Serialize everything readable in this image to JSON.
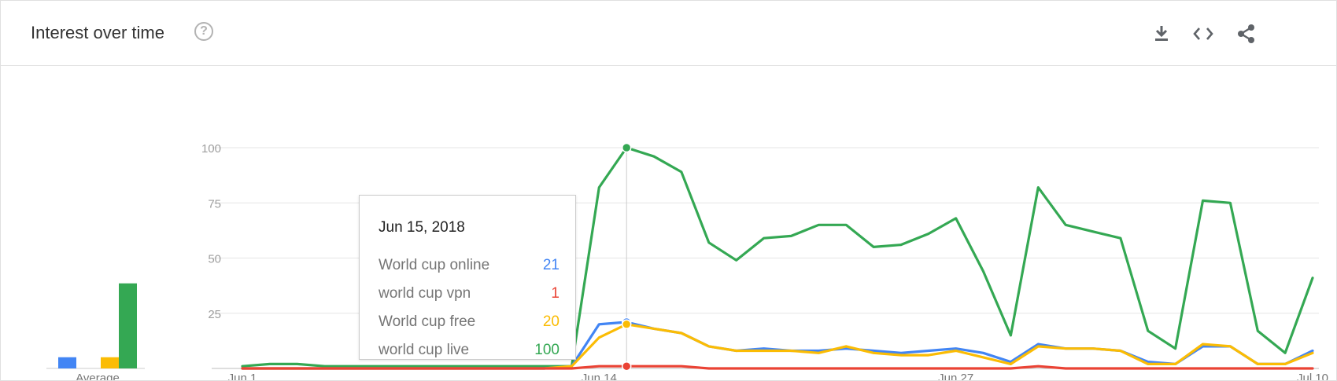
{
  "header": {
    "title": "Interest over time",
    "help_icon": "help-circle-icon",
    "actions": [
      {
        "name": "download-icon"
      },
      {
        "name": "embed-code-icon"
      },
      {
        "name": "share-icon"
      }
    ]
  },
  "tooltip": {
    "date": "Jun 15, 2018",
    "rows": [
      {
        "label": "World cup online",
        "value": "21",
        "color": "#4285f4"
      },
      {
        "label": "world cup vpn",
        "value": "1",
        "color": "#ea4335"
      },
      {
        "label": "World cup free",
        "value": "20",
        "color": "#fbbc04"
      },
      {
        "label": "world cup live",
        "value": "100",
        "color": "#34a853"
      }
    ]
  },
  "chart_data": [
    {
      "type": "bar",
      "xlabel": "Average",
      "series": [
        {
          "values": [
            5
          ],
          "color": "#4285f4"
        },
        {
          "values": [
            0
          ],
          "color": "#ea4335"
        },
        {
          "values": [
            5
          ],
          "color": "#fbbc04"
        },
        {
          "values": [
            38
          ],
          "color": "#34a853"
        }
      ]
    },
    {
      "type": "line",
      "ylim": [
        0,
        100
      ],
      "yticks": [
        25,
        50,
        75,
        100
      ],
      "grid": true,
      "xtick_labels": [
        "Jun 1",
        "Jun 14",
        "Jun 27",
        "Jul 10"
      ],
      "xtick_days": [
        1,
        14,
        27,
        40
      ],
      "x_start": 1,
      "highlight_day": 15,
      "series": [
        {
          "key": "live",
          "color": "#34a853",
          "values": [
            1,
            2,
            2,
            1,
            1,
            1,
            1,
            1,
            1,
            1,
            1,
            1,
            1,
            82,
            100,
            96,
            89,
            57,
            49,
            59,
            60,
            65,
            65,
            55,
            56,
            61,
            68,
            44,
            15,
            82,
            65,
            62,
            59,
            17,
            9,
            76,
            75,
            17,
            7,
            41
          ]
        },
        {
          "key": "online",
          "color": "#4285f4",
          "values": [
            0,
            0,
            0,
            0,
            0,
            0,
            0,
            0,
            0,
            0,
            0,
            0,
            1,
            20,
            21,
            18,
            16,
            10,
            8,
            9,
            8,
            8,
            9,
            8,
            7,
            8,
            9,
            7,
            3,
            11,
            9,
            9,
            8,
            3,
            2,
            10,
            10,
            2,
            2,
            8
          ]
        },
        {
          "key": "free",
          "color": "#fbbc04",
          "values": [
            0,
            0,
            0,
            0,
            0,
            0,
            0,
            0,
            0,
            0,
            0,
            0,
            1,
            14,
            20,
            18,
            16,
            10,
            8,
            8,
            8,
            7,
            10,
            7,
            6,
            6,
            8,
            5,
            2,
            10,
            9,
            9,
            8,
            2,
            2,
            11,
            10,
            2,
            2,
            7
          ]
        },
        {
          "key": "vpn",
          "color": "#ea4335",
          "values": [
            0,
            0,
            0,
            0,
            0,
            0,
            0,
            0,
            0,
            0,
            0,
            0,
            0,
            1,
            1,
            1,
            1,
            0,
            0,
            0,
            0,
            0,
            0,
            0,
            0,
            0,
            0,
            0,
            0,
            1,
            0,
            0,
            0,
            0,
            0,
            0,
            0,
            0,
            0,
            0
          ]
        }
      ]
    }
  ]
}
